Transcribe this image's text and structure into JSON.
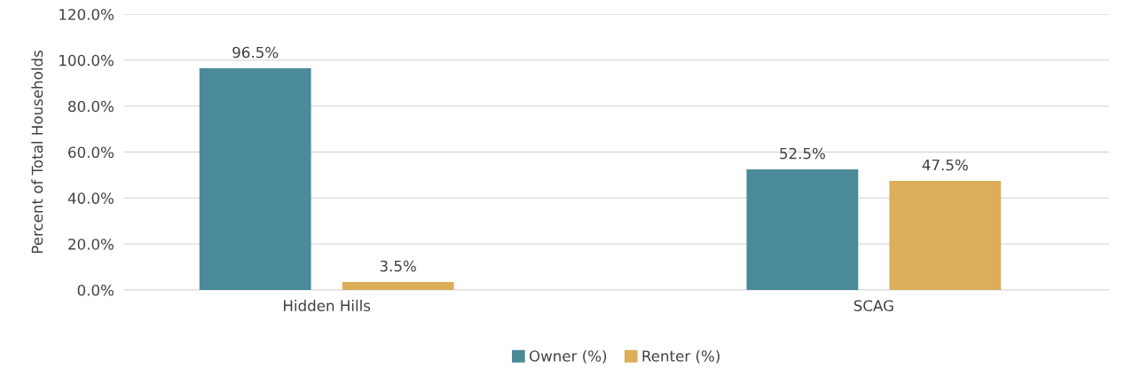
{
  "chart_data": {
    "type": "bar",
    "ylabel": "Percent of Total Households",
    "categories": [
      "Hidden Hills",
      "SCAG"
    ],
    "series": [
      {
        "name": "Owner (%)",
        "color": "#4a8a99",
        "values": [
          96.5,
          52.5
        ],
        "value_labels": [
          "96.5%",
          "52.5%"
        ]
      },
      {
        "name": "Renter (%)",
        "color": "#dcae59",
        "values": [
          3.5,
          47.5
        ],
        "value_labels": [
          "3.5%",
          "47.5%"
        ]
      }
    ],
    "ylim": [
      0,
      120
    ],
    "yticks": [
      {
        "value": 0,
        "label": "0.0%"
      },
      {
        "value": 20,
        "label": "20.0%"
      },
      {
        "value": 40,
        "label": "40.0%"
      },
      {
        "value": 60,
        "label": "60.0%"
      },
      {
        "value": 80,
        "label": "80.0%"
      },
      {
        "value": 100,
        "label": "100.0%"
      },
      {
        "value": 120,
        "label": "120.0%"
      }
    ],
    "grid": "y",
    "legend": "bottom"
  }
}
